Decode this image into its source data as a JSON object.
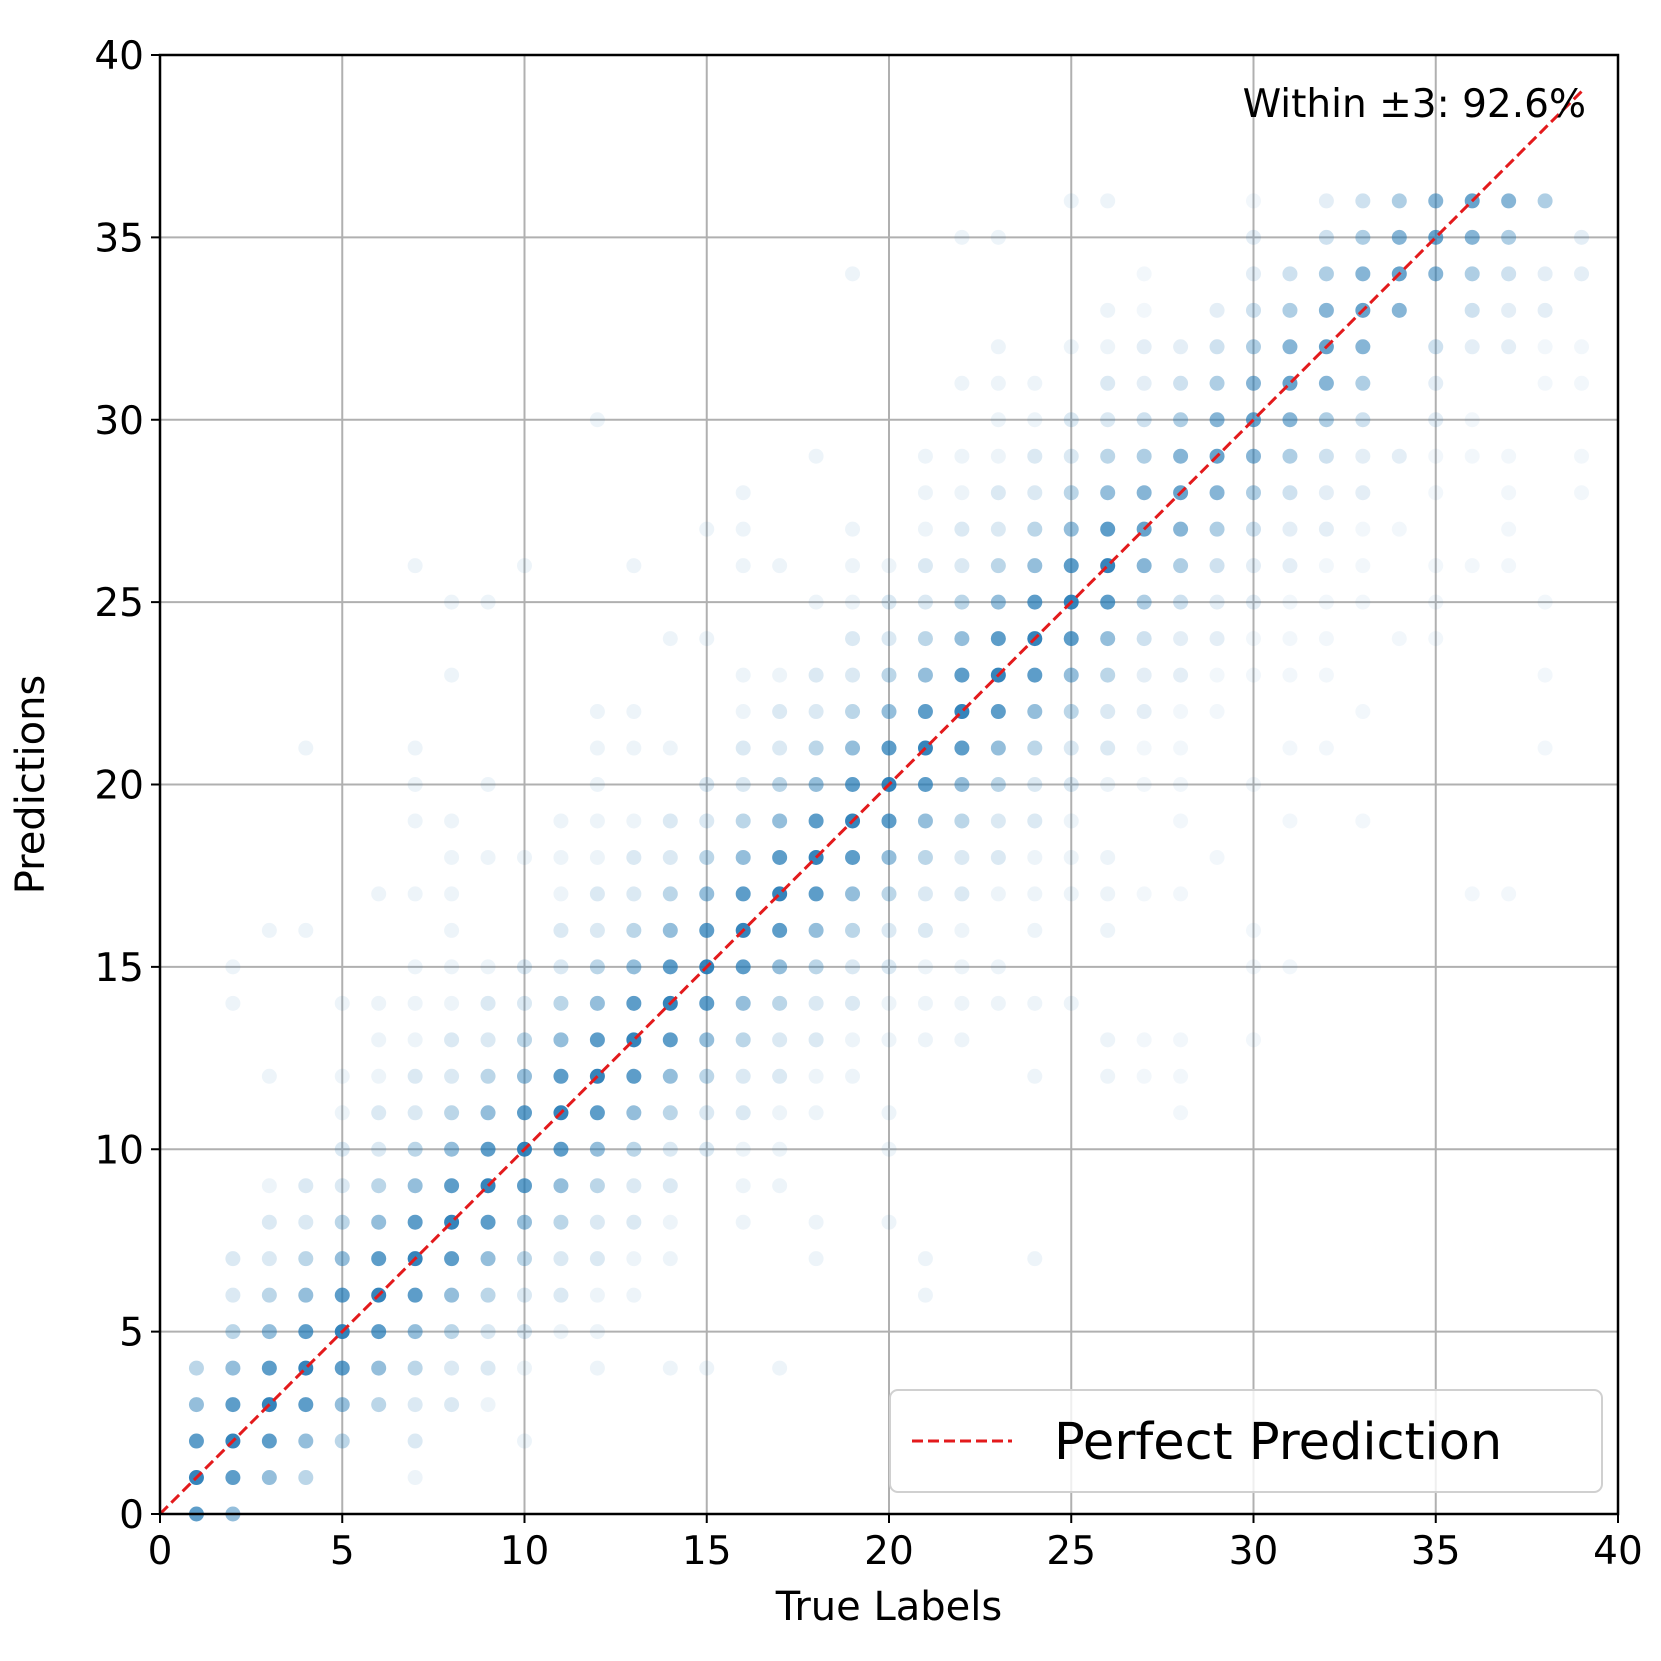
{
  "chart_data": {
    "type": "scatter",
    "title": "",
    "xlabel": "True Labels",
    "ylabel": "Predictions",
    "xlim": [
      0,
      40
    ],
    "ylim": [
      0,
      40
    ],
    "xticks": [
      0,
      5,
      10,
      15,
      20,
      25,
      30,
      35,
      40
    ],
    "yticks": [
      0,
      5,
      10,
      15,
      20,
      25,
      30,
      35,
      40
    ],
    "grid": true,
    "annotation": "Within ±3: 92.6%",
    "legend": {
      "position": "bottom-right",
      "entries": [
        "Perfect Prediction"
      ]
    },
    "point_color": "#1f77b4",
    "line_color": "#e31a1c",
    "perfect_line": {
      "x": [
        0,
        39
      ],
      "y": [
        0,
        39
      ],
      "style": "dashed"
    },
    "point_alpha_note": "points are semi-transparent; darker = more overlapping samples",
    "points": {
      "1": [
        0,
        1,
        2,
        3,
        4
      ],
      "2": [
        0,
        1,
        2,
        3,
        4,
        5,
        6,
        7,
        14,
        15
      ],
      "3": [
        1,
        2,
        3,
        4,
        5,
        6,
        7,
        8,
        9,
        12,
        16
      ],
      "4": [
        1,
        2,
        3,
        4,
        5,
        6,
        7,
        8,
        9,
        16,
        21
      ],
      "5": [
        2,
        3,
        4,
        5,
        6,
        7,
        8,
        9,
        10,
        11,
        12,
        14
      ],
      "6": [
        3,
        4,
        5,
        6,
        7,
        8,
        9,
        10,
        11,
        12,
        13,
        14,
        17
      ],
      "7": [
        1,
        2,
        3,
        4,
        5,
        6,
        7,
        8,
        9,
        10,
        11,
        12,
        13,
        14,
        15,
        17,
        19,
        20,
        21,
        26
      ],
      "8": [
        3,
        4,
        5,
        6,
        7,
        8,
        9,
        10,
        11,
        12,
        13,
        14,
        15,
        16,
        17,
        18,
        19,
        23,
        25
      ],
      "9": [
        3,
        4,
        5,
        6,
        7,
        8,
        9,
        10,
        11,
        12,
        13,
        14,
        15,
        18,
        20,
        25
      ],
      "10": [
        2,
        4,
        5,
        6,
        7,
        8,
        9,
        10,
        11,
        12,
        13,
        14,
        15,
        18,
        26
      ],
      "11": [
        5,
        6,
        7,
        8,
        9,
        10,
        11,
        12,
        13,
        14,
        15,
        16,
        17,
        18,
        19
      ],
      "12": [
        4,
        5,
        6,
        7,
        8,
        9,
        10,
        11,
        12,
        13,
        14,
        15,
        16,
        17,
        18,
        19,
        20,
        21,
        22,
        30
      ],
      "13": [
        6,
        7,
        8,
        9,
        10,
        11,
        12,
        13,
        14,
        15,
        16,
        17,
        18,
        19,
        21,
        22,
        26
      ],
      "14": [
        4,
        7,
        8,
        9,
        10,
        11,
        12,
        13,
        14,
        15,
        16,
        17,
        18,
        19,
        21,
        24
      ],
      "15": [
        4,
        10,
        11,
        12,
        13,
        14,
        15,
        16,
        17,
        18,
        19,
        20,
        24,
        27
      ],
      "16": [
        8,
        9,
        10,
        11,
        12,
        13,
        14,
        15,
        16,
        17,
        18,
        19,
        20,
        21,
        22,
        23,
        26,
        27,
        28
      ],
      "17": [
        4,
        9,
        10,
        11,
        12,
        13,
        14,
        15,
        16,
        17,
        18,
        19,
        20,
        21,
        22,
        23,
        26
      ],
      "18": [
        7,
        8,
        11,
        12,
        13,
        14,
        15,
        16,
        17,
        18,
        19,
        20,
        21,
        22,
        23,
        25,
        29
      ],
      "19": [
        12,
        13,
        14,
        15,
        16,
        17,
        18,
        19,
        20,
        21,
        22,
        23,
        24,
        25,
        26,
        27,
        34
      ],
      "20": [
        8,
        10,
        11,
        13,
        14,
        15,
        16,
        17,
        18,
        19,
        20,
        21,
        22,
        23,
        24,
        25,
        26
      ],
      "21": [
        6,
        7,
        13,
        14,
        15,
        16,
        17,
        18,
        19,
        20,
        21,
        22,
        23,
        24,
        25,
        26,
        27,
        28,
        29
      ],
      "22": [
        13,
        14,
        15,
        16,
        17,
        18,
        19,
        20,
        21,
        22,
        23,
        24,
        25,
        26,
        27,
        28,
        29,
        31,
        35
      ],
      "23": [
        14,
        15,
        17,
        18,
        19,
        20,
        21,
        22,
        23,
        24,
        25,
        26,
        27,
        28,
        29,
        30,
        31,
        32,
        35
      ],
      "24": [
        7,
        12,
        14,
        16,
        17,
        18,
        19,
        20,
        21,
        22,
        23,
        24,
        25,
        26,
        27,
        28,
        29,
        30,
        31
      ],
      "25": [
        14,
        17,
        18,
        19,
        20,
        21,
        22,
        23,
        24,
        25,
        26,
        27,
        28,
        29,
        30,
        32,
        36
      ],
      "26": [
        12,
        13,
        16,
        17,
        18,
        20,
        21,
        22,
        23,
        24,
        25,
        26,
        27,
        28,
        29,
        30,
        31,
        32,
        33,
        36
      ],
      "27": [
        12,
        13,
        17,
        20,
        21,
        22,
        23,
        24,
        25,
        26,
        27,
        28,
        29,
        30,
        31,
        32,
        33,
        34
      ],
      "28": [
        11,
        12,
        13,
        17,
        19,
        20,
        21,
        22,
        23,
        24,
        25,
        26,
        27,
        28,
        29,
        30,
        31,
        32
      ],
      "29": [
        18,
        22,
        23,
        24,
        25,
        26,
        27,
        28,
        29,
        30,
        31,
        32,
        33
      ],
      "30": [
        13,
        15,
        16,
        20,
        23,
        24,
        25,
        26,
        27,
        28,
        29,
        30,
        31,
        32,
        33,
        34,
        35,
        36
      ],
      "31": [
        15,
        19,
        21,
        23,
        24,
        25,
        26,
        27,
        28,
        29,
        30,
        31,
        32,
        33,
        34
      ],
      "32": [
        21,
        23,
        24,
        25,
        26,
        27,
        28,
        29,
        30,
        31,
        32,
        33,
        34,
        35,
        36
      ],
      "33": [
        19,
        22,
        25,
        26,
        27,
        28,
        29,
        30,
        31,
        32,
        33,
        34,
        35,
        36
      ],
      "34": [
        24,
        27,
        29,
        33,
        34,
        35,
        36
      ],
      "35": [
        24,
        25,
        26,
        28,
        29,
        30,
        31,
        32,
        34,
        35,
        36
      ],
      "36": [
        17,
        26,
        29,
        30,
        32,
        33,
        34,
        35,
        36
      ],
      "37": [
        17,
        26,
        27,
        28,
        29,
        32,
        33,
        34,
        35,
        36
      ],
      "38": [
        21,
        23,
        25,
        31,
        32,
        33,
        34,
        36
      ],
      "39": [
        28,
        29,
        31,
        32,
        34,
        35
      ]
    }
  }
}
